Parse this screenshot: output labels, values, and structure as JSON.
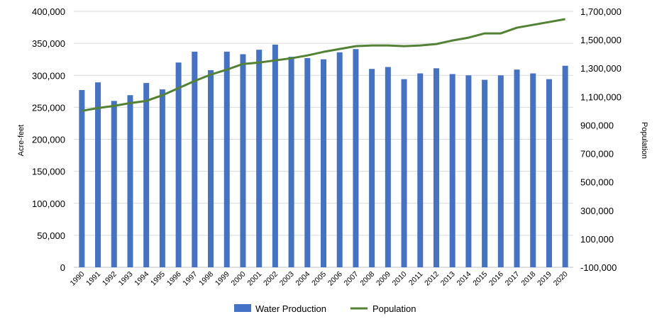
{
  "chart_data": {
    "type": "bar",
    "categories": [
      "1990",
      "1991",
      "1992",
      "1993",
      "1994",
      "1995",
      "1996",
      "1997",
      "1998",
      "1999",
      "2000",
      "2001",
      "2002",
      "2003",
      "2004",
      "2005",
      "2006",
      "2007",
      "2008",
      "2009",
      "2010",
      "2011",
      "2012",
      "2013",
      "2014",
      "2015",
      "2016",
      "2017",
      "2018",
      "2019",
      "2020"
    ],
    "series": [
      {
        "name": "Water Production",
        "type": "bar",
        "axis": "left",
        "color": "#4472C4",
        "values": [
          277000,
          289000,
          260000,
          269000,
          288000,
          278000,
          320000,
          337000,
          308000,
          337000,
          333000,
          340000,
          348000,
          329000,
          327000,
          325000,
          336000,
          341000,
          310000,
          313000,
          294000,
          303000,
          311000,
          302000,
          300000,
          293000,
          300000,
          309000,
          303000,
          294000,
          315000
        ]
      },
      {
        "name": "Population",
        "type": "line",
        "axis": "right",
        "color": "#548235",
        "values": [
          1000000,
          1020000,
          1035000,
          1055000,
          1070000,
          1110000,
          1160000,
          1210000,
          1255000,
          1290000,
          1330000,
          1340000,
          1355000,
          1370000,
          1390000,
          1415000,
          1435000,
          1455000,
          1460000,
          1460000,
          1455000,
          1460000,
          1470000,
          1495000,
          1515000,
          1545000,
          1545000,
          1585000,
          1605000,
          1625000,
          1645000
        ]
      }
    ],
    "ylabel": "Acre-feet",
    "y2label": "Population",
    "ylim": [
      0,
      400000
    ],
    "y2lim": [
      -100000,
      1700000
    ],
    "yticks": [
      "0",
      "50,000",
      "100,000",
      "150,000",
      "200,000",
      "250,000",
      "300,000",
      "350,000",
      "400,000"
    ],
    "y2ticks": [
      "-100,000",
      "100,000",
      "300,000",
      "500,000",
      "700,000",
      "900,000",
      "1,100,000",
      "1,300,000",
      "1,500,000",
      "1,700,000"
    ],
    "grid": true,
    "legend_position": "bottom"
  }
}
